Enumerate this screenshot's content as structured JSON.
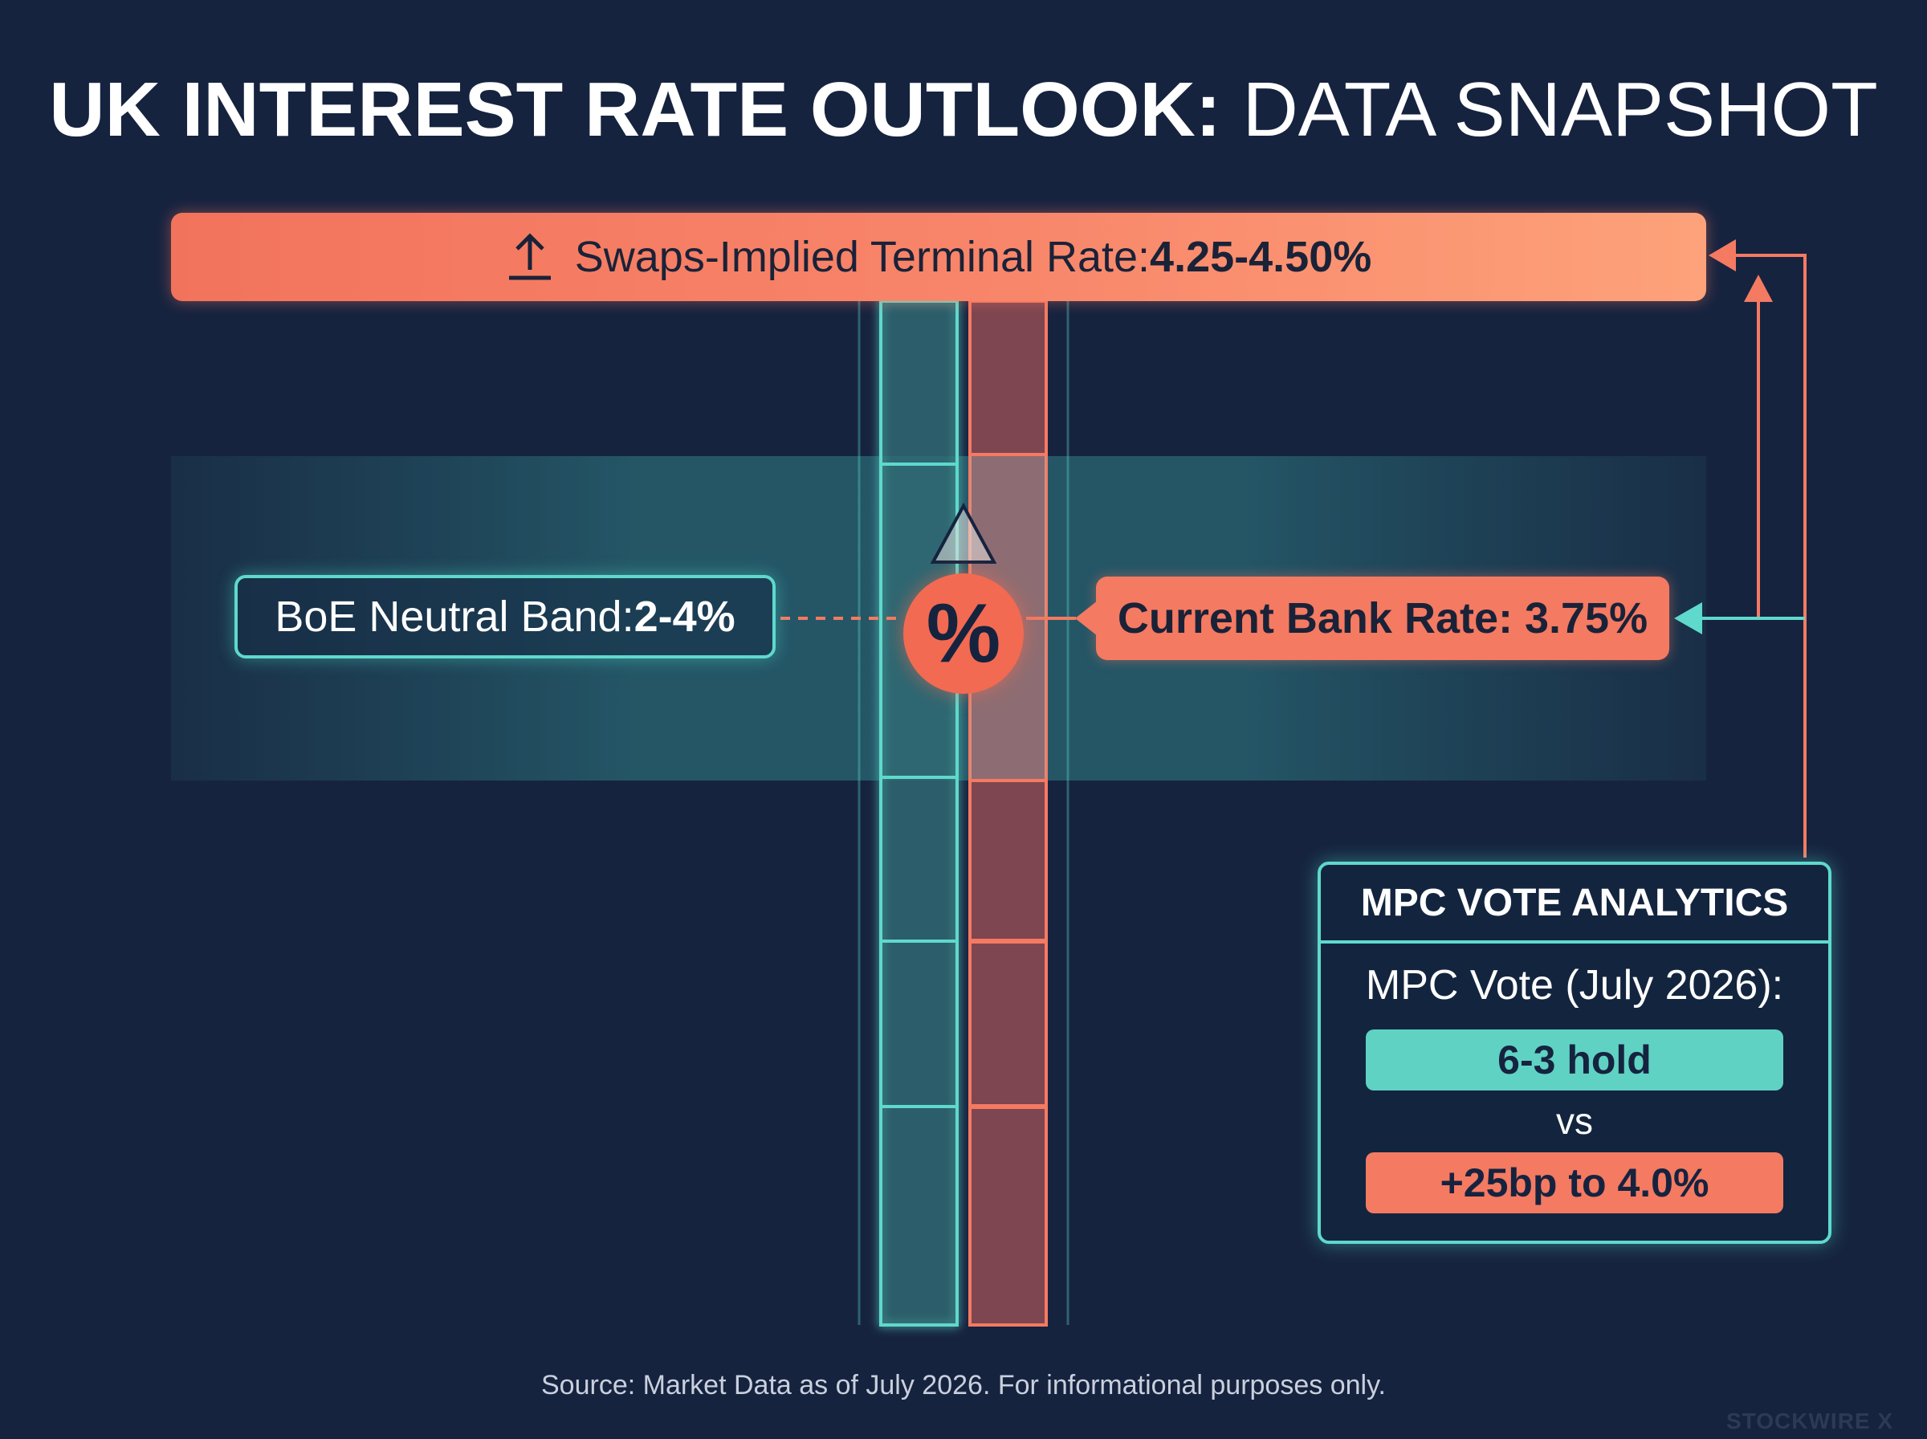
{
  "title": {
    "strong": "UK INTEREST RATE OUTLOOK:",
    "light": "DATA SNAPSHOT"
  },
  "terminal": {
    "label": "Swaps-Implied Terminal Rate: ",
    "value": "4.25-4.50%",
    "icon": "arrow-up-tray-icon"
  },
  "neutral_band": {
    "label": "BoE Neutral Band: ",
    "value": "2-4%"
  },
  "current_rate": {
    "label": "Current Bank Rate: 3.75%"
  },
  "percent_badge": {
    "symbol": "%"
  },
  "mpc": {
    "heading": "MPC VOTE ANALYTICS",
    "subheading": "MPC Vote (July 2026):",
    "hold": "6-3 hold",
    "vs": "vs",
    "hike": "+25bp to 4.0%"
  },
  "source": "Source: Market Data as of July 2026. For informational purposes only.",
  "watermark": "STOCKWIRE X",
  "colors": {
    "background": "#16233f",
    "teal": "#5fd9cc",
    "coral": "#f47a62"
  }
}
